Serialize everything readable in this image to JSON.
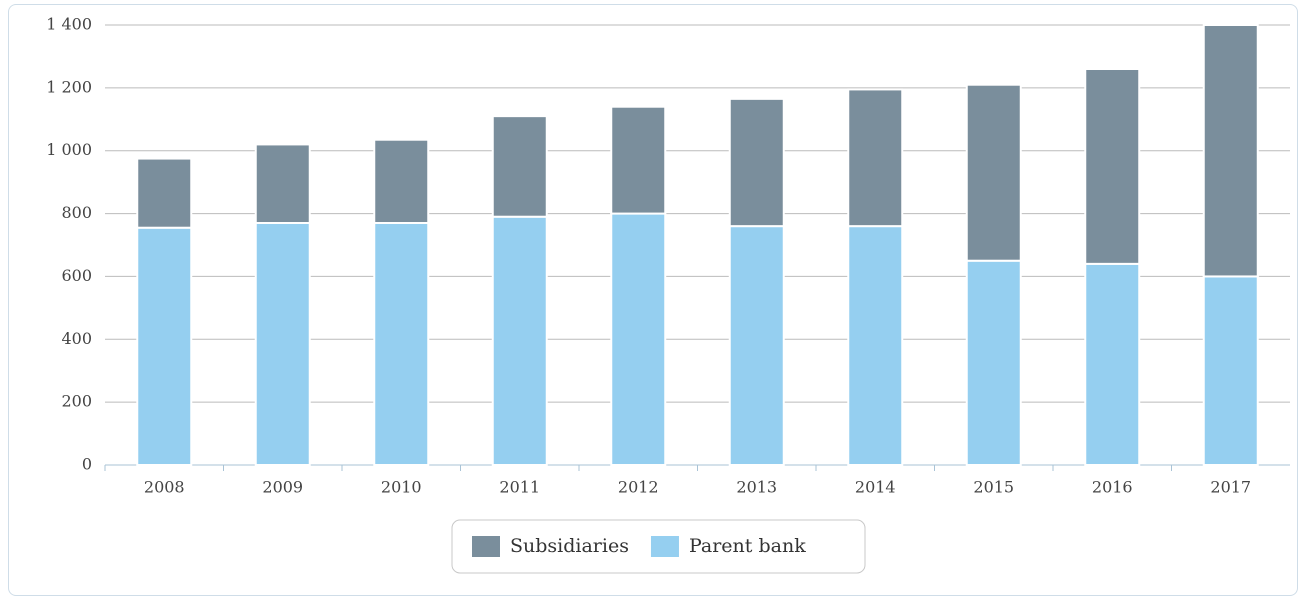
{
  "chart_data": {
    "type": "stacked_bar",
    "categories": [
      "2008",
      "2009",
      "2010",
      "2011",
      "2012",
      "2013",
      "2014",
      "2015",
      "2016",
      "2017"
    ],
    "series": [
      {
        "name": "Subsidiaries",
        "color": "#7a8e9c",
        "values": [
          220,
          250,
          265,
          320,
          340,
          405,
          435,
          560,
          620,
          800
        ]
      },
      {
        "name": "Parent bank",
        "color": "#95cff0",
        "values": [
          755,
          770,
          770,
          790,
          800,
          760,
          760,
          650,
          640,
          600
        ]
      }
    ],
    "ylim": [
      0,
      1400
    ],
    "yticks": [
      0,
      200,
      400,
      600,
      800,
      {
        "value": 1000,
        "label": "1 000"
      },
      {
        "value": 1200,
        "label": "1 200"
      },
      {
        "value": 1400,
        "label": "1 400"
      }
    ],
    "grid": true,
    "legend": "bottom"
  }
}
